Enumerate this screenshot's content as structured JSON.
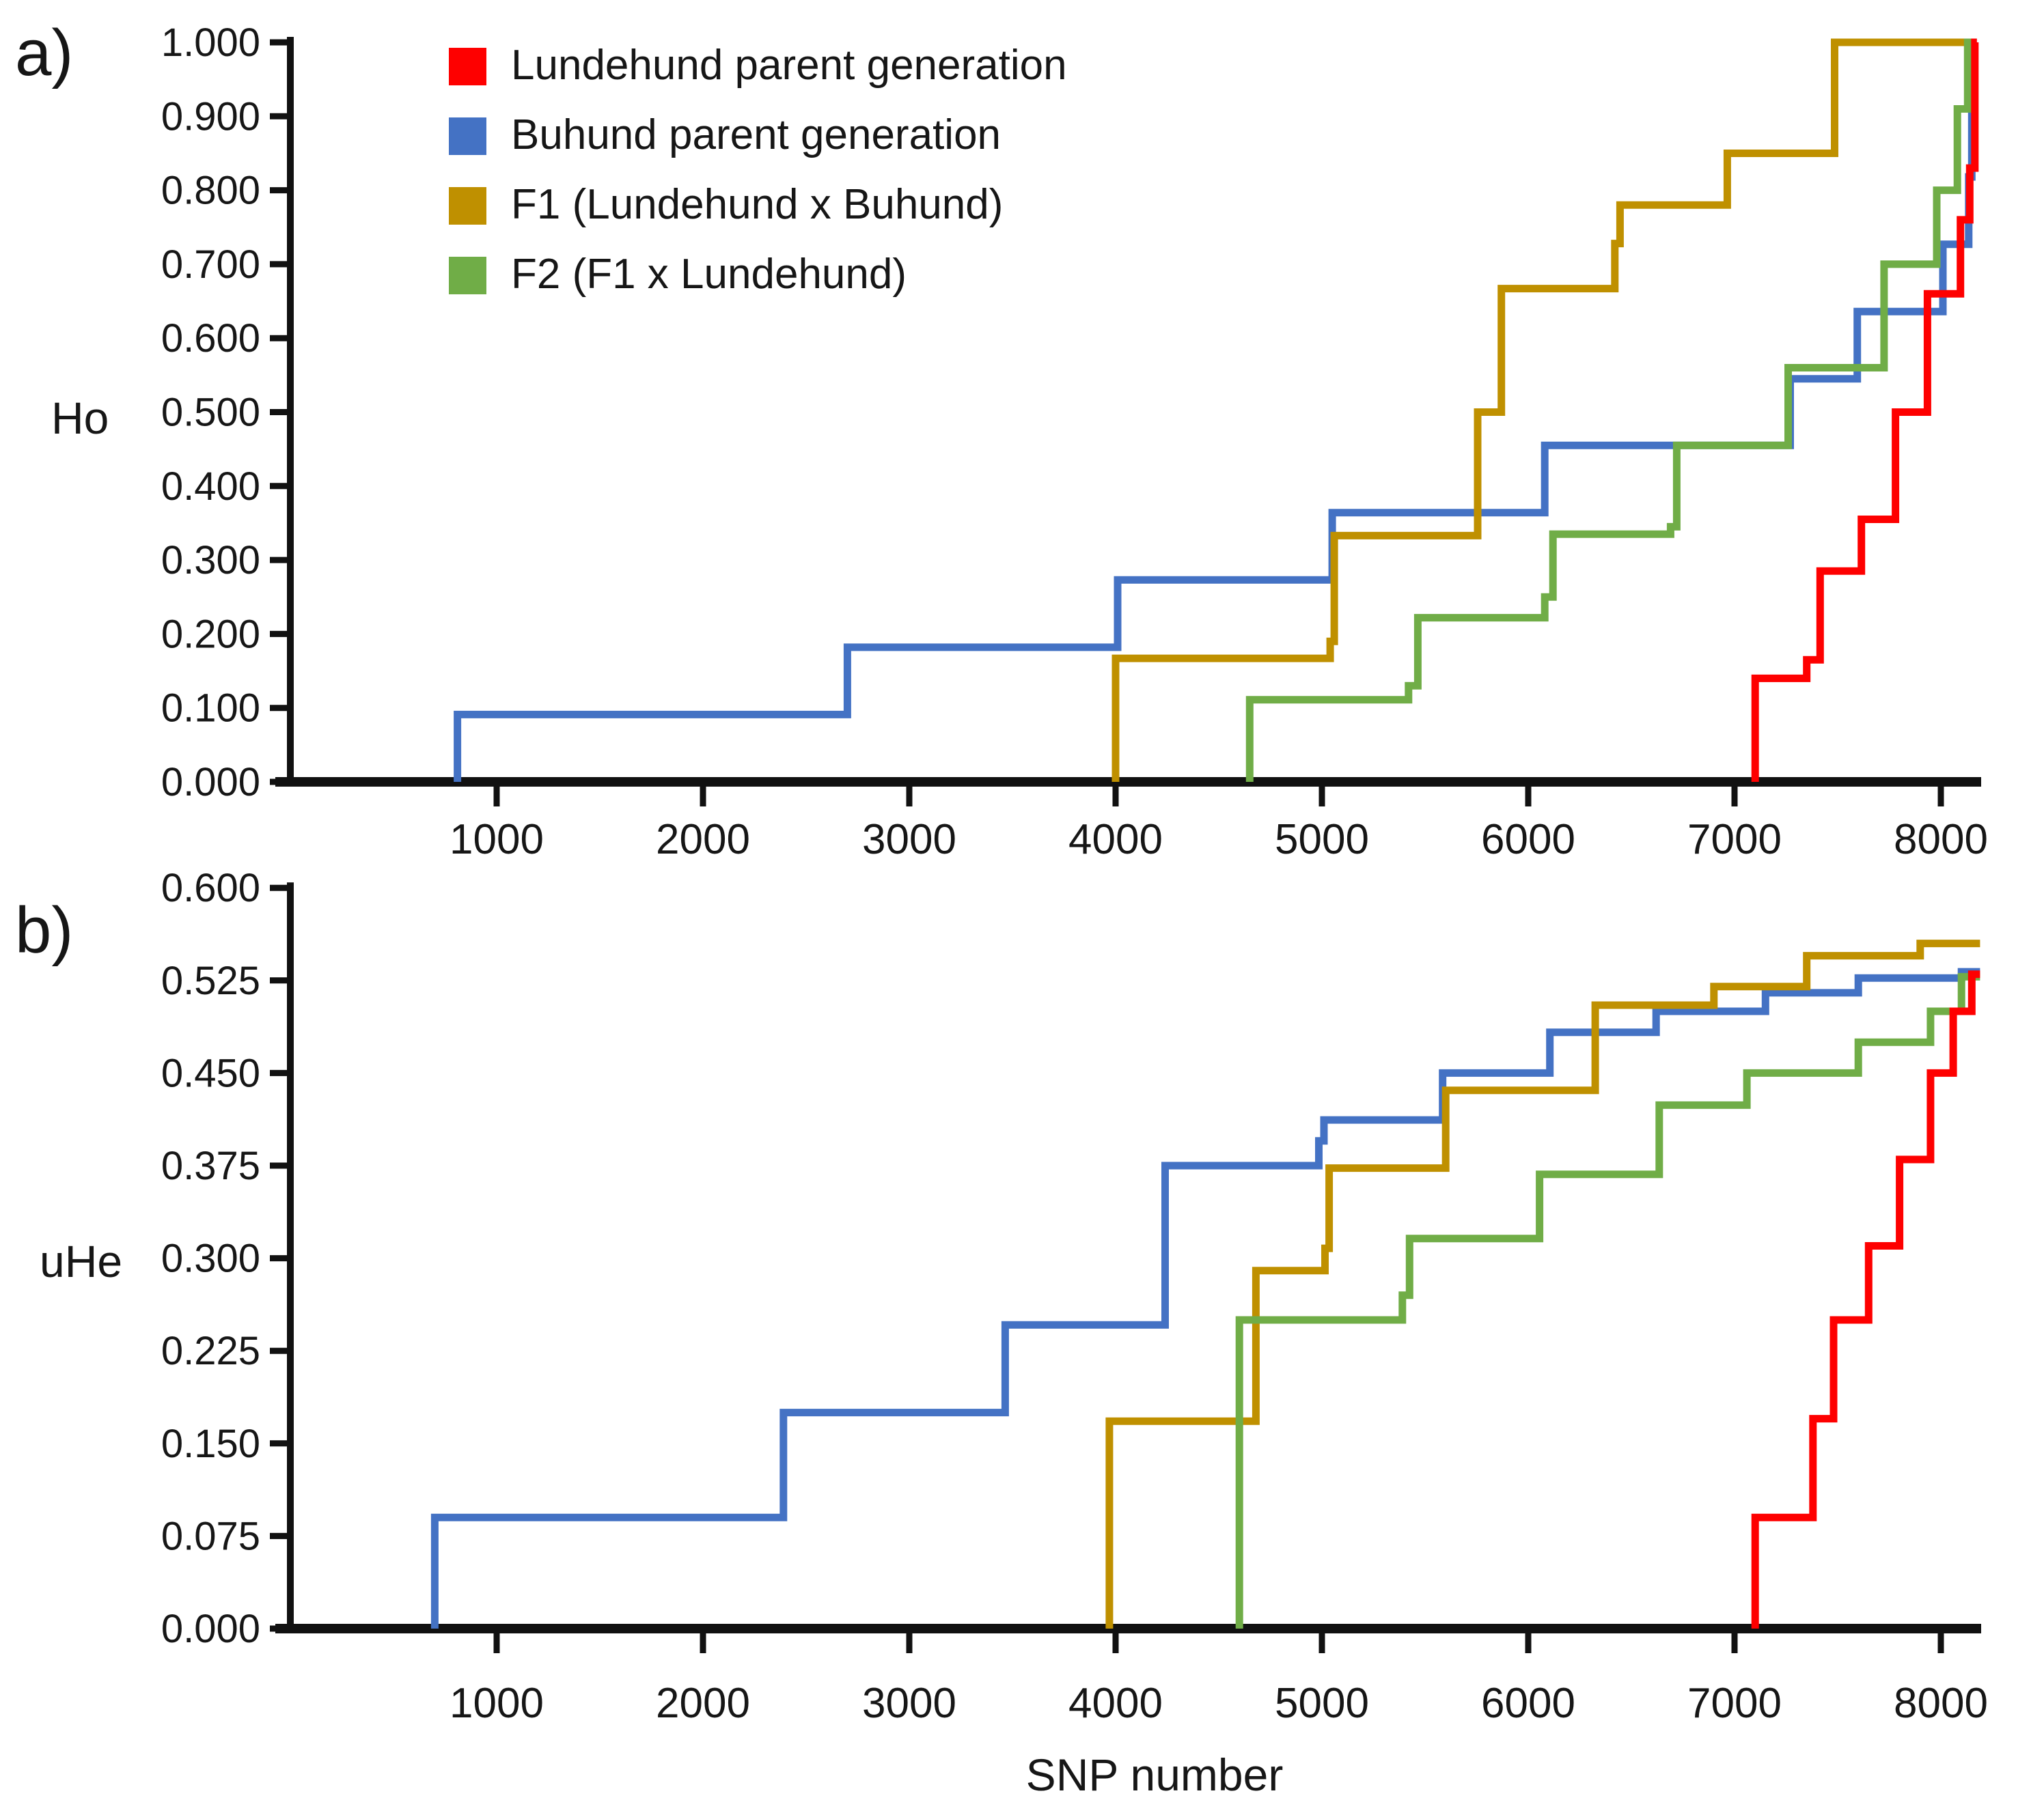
{
  "figure": {
    "description": "Cumulative step plots of observed heterozygosity (Ho) and unbiased expected heterozygosity (uHe) per SNP for Lundehund, Buhund, F1 and F2 dogs",
    "background_color": "#ffffff",
    "text_color": "#161616"
  },
  "legend": {
    "items": [
      {
        "label": "Lundehund parent generation",
        "color": "#fe0000"
      },
      {
        "label": "Buhund parent generation",
        "color": "#4472c4"
      },
      {
        "label": "F1 (Lundehund x Buhund)",
        "color": "#bf9000"
      },
      {
        "label": "F2 (F1 x Lundehund)",
        "color": "#70ad47"
      }
    ]
  },
  "xlabel": "SNP number",
  "chart_data": [
    {
      "type": "line",
      "subtype": "cumulative-step",
      "panel_letter": "a)",
      "ylabel": "Ho",
      "ylim": [
        0.0,
        1.0
      ],
      "xlim": [
        0,
        8200
      ],
      "grid": false,
      "legend_position": "top-left-inside",
      "yticks": [
        {
          "value": 1.0,
          "label": "1.000"
        },
        {
          "value": 0.9,
          "label": "0.900"
        },
        {
          "value": 0.8,
          "label": "0.800"
        },
        {
          "value": 0.7,
          "label": "0.700"
        },
        {
          "value": 0.6,
          "label": "0.600"
        },
        {
          "value": 0.5,
          "label": "0.500"
        },
        {
          "value": 0.4,
          "label": "0.400"
        },
        {
          "value": 0.3,
          "label": "0.300"
        },
        {
          "value": 0.2,
          "label": "0.200"
        },
        {
          "value": 0.1,
          "label": "0.100"
        },
        {
          "value": 0.0,
          "label": "0.000"
        }
      ],
      "xticks": [
        1000,
        2000,
        3000,
        4000,
        5000,
        6000,
        7000,
        8000
      ],
      "series": [
        {
          "name": "Buhund parent generation",
          "color": "#4472c4",
          "steps": [
            [
              810,
              0.091
            ],
            [
              2700,
              0.182
            ],
            [
              4010,
              0.273
            ],
            [
              5050,
              0.364
            ],
            [
              6080,
              0.455
            ],
            [
              7270,
              0.545
            ],
            [
              7595,
              0.636
            ],
            [
              8010,
              0.727
            ],
            [
              8135,
              0.818
            ],
            [
              8150,
              1.0
            ]
          ],
          "end": 8165
        },
        {
          "name": "F1 (Lundehund x Buhund)",
          "color": "#bf9000",
          "steps": [
            [
              4000,
              0.167
            ],
            [
              5040,
              0.19
            ],
            [
              5060,
              0.333
            ],
            [
              5755,
              0.5
            ],
            [
              5870,
              0.667
            ],
            [
              6420,
              0.728
            ],
            [
              6445,
              0.78
            ],
            [
              6965,
              0.85
            ],
            [
              7485,
              1.0
            ]
          ],
          "end": 8135
        },
        {
          "name": "F2 (F1 x Lundehund)",
          "color": "#70ad47",
          "steps": [
            [
              4650,
              0.111
            ],
            [
              5420,
              0.13
            ],
            [
              5465,
              0.222
            ],
            [
              6080,
              0.25
            ],
            [
              6120,
              0.335
            ],
            [
              6690,
              0.345
            ],
            [
              6720,
              0.455
            ],
            [
              7260,
              0.56
            ],
            [
              7725,
              0.7
            ],
            [
              7980,
              0.8
            ],
            [
              8080,
              0.91
            ],
            [
              8130,
              1.0
            ]
          ],
          "end": 8170
        },
        {
          "name": "Lundehund parent generation",
          "color": "#fe0000",
          "steps": [
            [
              7100,
              0.14
            ],
            [
              7350,
              0.165
            ],
            [
              7415,
              0.285
            ],
            [
              7615,
              0.355
            ],
            [
              7780,
              0.5
            ],
            [
              7935,
              0.66
            ],
            [
              8095,
              0.76
            ],
            [
              8140,
              0.83
            ],
            [
              8165,
              1.0
            ]
          ],
          "end": 8175
        }
      ]
    },
    {
      "type": "line",
      "subtype": "cumulative-step",
      "panel_letter": "b)",
      "ylabel": "uHe",
      "ylim": [
        0.0,
        0.6
      ],
      "xlim": [
        0,
        8200
      ],
      "grid": false,
      "yticks": [
        {
          "value": 0.6,
          "label": "0.600"
        },
        {
          "value": 0.525,
          "label": "0.525"
        },
        {
          "value": 0.45,
          "label": "0.450"
        },
        {
          "value": 0.375,
          "label": "0.375"
        },
        {
          "value": 0.3,
          "label": "0.300"
        },
        {
          "value": 0.225,
          "label": "0.225"
        },
        {
          "value": 0.15,
          "label": "0.150"
        },
        {
          "value": 0.075,
          "label": "0.075"
        },
        {
          "value": 0.0,
          "label": "0.000"
        }
      ],
      "xticks": [
        1000,
        2000,
        3000,
        4000,
        5000,
        6000,
        7000,
        8000
      ],
      "series": [
        {
          "name": "Buhund parent generation",
          "color": "#4472c4",
          "steps": [
            [
              700,
              0.09
            ],
            [
              2390,
              0.175
            ],
            [
              3465,
              0.246
            ],
            [
              4240,
              0.375
            ],
            [
              4985,
              0.395
            ],
            [
              5010,
              0.412
            ],
            [
              5585,
              0.45
            ],
            [
              6105,
              0.483
            ],
            [
              6620,
              0.5
            ],
            [
              7150,
              0.515
            ],
            [
              7600,
              0.527
            ],
            [
              8100,
              0.532
            ]
          ],
          "end": 8190
        },
        {
          "name": "F1 (Lundehund x Buhund)",
          "color": "#bf9000",
          "steps": [
            [
              3970,
              0.168
            ],
            [
              4680,
              0.29
            ],
            [
              5015,
              0.308
            ],
            [
              5035,
              0.373
            ],
            [
              5600,
              0.436
            ],
            [
              6325,
              0.505
            ],
            [
              6900,
              0.52
            ],
            [
              7350,
              0.545
            ],
            [
              7900,
              0.555
            ]
          ],
          "end": 8190
        },
        {
          "name": "F2 (F1 x Lundehund)",
          "color": "#70ad47",
          "steps": [
            [
              4600,
              0.25
            ],
            [
              5390,
              0.27
            ],
            [
              5425,
              0.316
            ],
            [
              6055,
              0.368
            ],
            [
              6635,
              0.424
            ],
            [
              7060,
              0.45
            ],
            [
              7600,
              0.475
            ],
            [
              7950,
              0.5
            ],
            [
              8100,
              0.528
            ]
          ],
          "end": 8190
        },
        {
          "name": "Lundehund parent generation",
          "color": "#fe0000",
          "steps": [
            [
              7100,
              0.09
            ],
            [
              7380,
              0.17
            ],
            [
              7480,
              0.25
            ],
            [
              7650,
              0.31
            ],
            [
              7800,
              0.38
            ],
            [
              7950,
              0.45
            ],
            [
              8060,
              0.5
            ],
            [
              8150,
              0.53
            ]
          ],
          "end": 8190
        }
      ]
    }
  ]
}
